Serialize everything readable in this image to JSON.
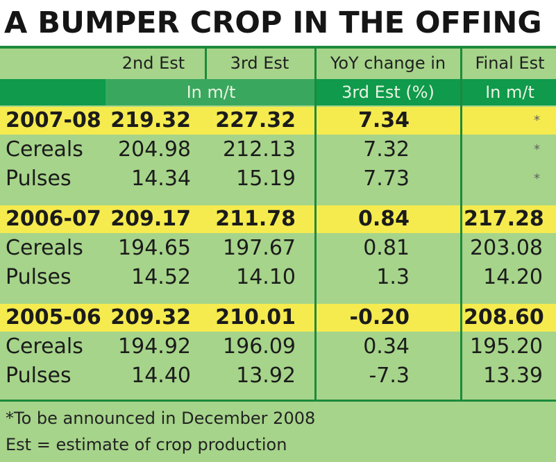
{
  "chart_data": {
    "type": "table",
    "title": "A BUMPER CROP IN THE OFFING",
    "columns": {
      "est2": "2nd Est",
      "est3": "3rd Est",
      "yoy": "YoY change in",
      "final": "Final Est"
    },
    "units": {
      "est": "In m/t",
      "yoy": "3rd Est (%)",
      "final": "In m/t"
    },
    "groups": [
      {
        "year": {
          "label": "2007-08",
          "est2": "219.32",
          "est3": "227.32",
          "yoy": "7.34",
          "final": "*"
        },
        "cereals": {
          "label": "Cereals",
          "est2": "204.98",
          "est3": "212.13",
          "yoy": "7.32",
          "final": "*"
        },
        "pulses": {
          "label": "Pulses",
          "est2": "14.34",
          "est3": "15.19",
          "yoy": "7.73",
          "final": "*"
        }
      },
      {
        "year": {
          "label": "2006-07",
          "est2": "209.17",
          "est3": "211.78",
          "yoy": "0.84",
          "final": "217.28"
        },
        "cereals": {
          "label": "Cereals",
          "est2": "194.65",
          "est3": "197.67",
          "yoy": "0.81",
          "final": "203.08"
        },
        "pulses": {
          "label": "Pulses",
          "est2": "14.52",
          "est3": "14.10",
          "yoy": "1.3",
          "final": "14.20"
        }
      },
      {
        "year": {
          "label": "2005-06",
          "est2": "209.32",
          "est3": "210.01",
          "yoy": "-0.20",
          "final": "208.60"
        },
        "cereals": {
          "label": "Cereals",
          "est2": "194.92",
          "est3": "196.09",
          "yoy": "0.34",
          "final": "195.20"
        },
        "pulses": {
          "label": "Pulses",
          "est2": "14.40",
          "est3": "13.92",
          "yoy": "-7.3",
          "final": "13.39"
        }
      }
    ],
    "footnotes": {
      "star": "*To be announced in December 2008",
      "est": "Est = estimate of crop production"
    }
  }
}
